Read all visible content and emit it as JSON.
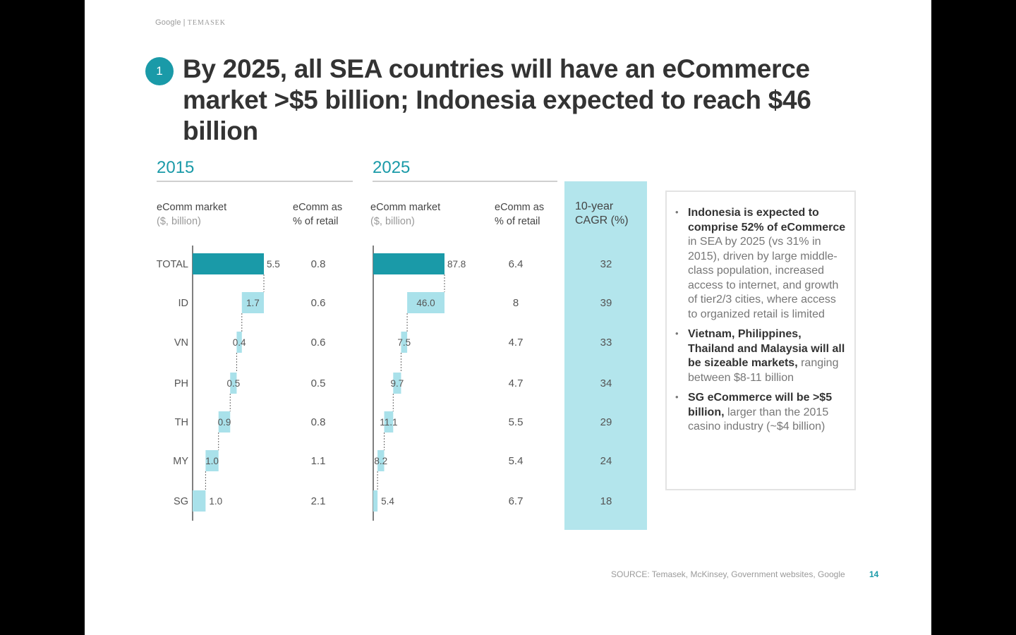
{
  "header": {
    "brand_google": "Google",
    "brand_sep": "|",
    "brand_temasek": "TEMASEK",
    "badge": "1",
    "title": "By 2025, all SEA countries will have an eCommerce market >$5 billion; Indonesia expected to reach $46 billion"
  },
  "colors": {
    "accent": "#1a9aa8",
    "bar_light": "#a9e1ea",
    "cagr_bg": "#b3e5ec"
  },
  "columns": {
    "y2015": "2015",
    "y2025": "2025",
    "market_label": "eComm market",
    "market_unit": "($, billion)",
    "retail_label_1": "eComm as",
    "retail_label_2": "% of retail",
    "cagr_label_1": "10-year",
    "cagr_label_2": "CAGR (%)"
  },
  "chart_data": [
    {
      "type": "bar",
      "subtype": "waterfall",
      "title": "2015",
      "categories": [
        "TOTAL",
        "ID",
        "VN",
        "PH",
        "TH",
        "MY",
        "SG"
      ],
      "values": [
        5.5,
        1.7,
        0.4,
        0.5,
        0.9,
        1.0,
        1.0
      ],
      "labels": [
        "5.5",
        "1.7",
        "0.4",
        "0.5",
        "0.9",
        "1.0",
        "1.0"
      ],
      "retail_pct": [
        "0.8",
        "0.6",
        "0.6",
        "0.5",
        "0.8",
        "1.1",
        "2.1"
      ]
    },
    {
      "type": "bar",
      "subtype": "waterfall",
      "title": "2025",
      "categories": [
        "TOTAL",
        "ID",
        "VN",
        "PH",
        "TH",
        "MY",
        "SG"
      ],
      "values": [
        87.8,
        46.0,
        7.5,
        9.7,
        11.1,
        8.2,
        5.4
      ],
      "labels": [
        "87.8",
        "46.0",
        "7.5",
        "9.7",
        "11.1",
        "8.2",
        "5.4"
      ],
      "retail_pct": [
        "6.4",
        "8",
        "4.7",
        "4.7",
        "5.5",
        "5.4",
        "6.7"
      ]
    },
    {
      "type": "table",
      "title": "10-year CAGR (%)",
      "categories": [
        "TOTAL",
        "ID",
        "VN",
        "PH",
        "TH",
        "MY",
        "SG"
      ],
      "values": [
        "32",
        "39",
        "33",
        "34",
        "29",
        "24",
        "18"
      ]
    }
  ],
  "notes": [
    {
      "bold": "Indonesia is expected to comprise 52% of eCommerce",
      "rest": " in SEA by 2025 (vs 31% in 2015), driven by large middle-class population, increased access to internet, and growth of tier2/3 cities, where access to organized retail is limited"
    },
    {
      "bold": "Vietnam, Philippines, Thailand and Malaysia will all be sizeable markets,",
      "rest": " ranging between $8-11 billion"
    },
    {
      "bold": "SG eCommerce will be >$5 billion,",
      "rest": " larger than the 2015 casino industry (~$4 billion)"
    }
  ],
  "footer": {
    "source": "SOURCE: Temasek, McKinsey, Government websites, Google",
    "page": "14"
  }
}
